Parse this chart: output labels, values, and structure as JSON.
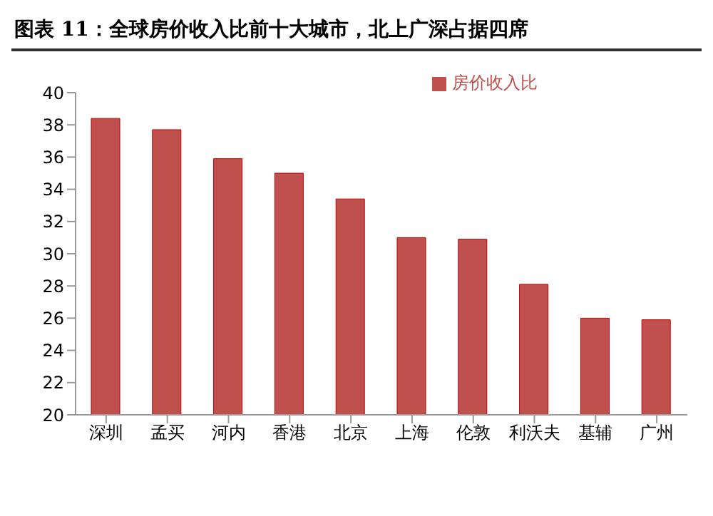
{
  "chart_data": {
    "type": "bar",
    "title": "图表 11：全球房价收入比前十大城市，北上广深占据四席",
    "categories": [
      "深圳",
      "孟买",
      "河内",
      "香港",
      "北京",
      "上海",
      "伦敦",
      "利沃夫",
      "基辅",
      "广州"
    ],
    "series": [
      {
        "name": "房价收入比",
        "color": "#c0504d",
        "values": [
          38.4,
          37.7,
          35.9,
          35.0,
          33.4,
          31.0,
          30.9,
          28.1,
          26.0,
          25.9
        ]
      }
    ],
    "ylim": [
      20,
      40
    ],
    "yticks": [
      20,
      22,
      24,
      26,
      28,
      30,
      32,
      34,
      36,
      38,
      40
    ],
    "grid": false,
    "legend": "top"
  }
}
